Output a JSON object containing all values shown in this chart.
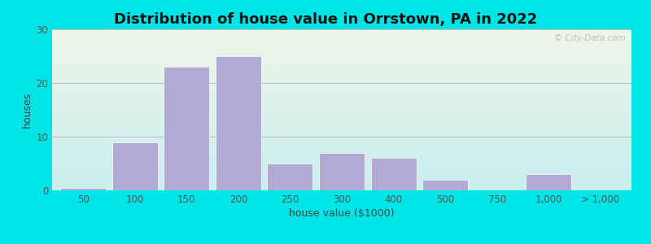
{
  "title": "Distribution of house value in Orrstown, PA in 2022",
  "xlabel": "house value ($1000)",
  "ylabel": "houses",
  "bar_color": "#b3aad4",
  "bar_edgecolor": "#ffffff",
  "background_outer": "#00e5e5",
  "background_inner_top": "#eef5e8",
  "background_inner_bottom": "#c8eeee",
  "ylim": [
    0,
    30
  ],
  "yticks": [
    0,
    10,
    20,
    30
  ],
  "tick_labels": [
    "50",
    "100",
    "150",
    "200",
    "250",
    "300",
    "400",
    "500",
    "750",
    "1,000",
    "> 1,000"
  ],
  "values": [
    0.5,
    9,
    23,
    25,
    5,
    7,
    6,
    2,
    0,
    3,
    0
  ],
  "watermark": "© City-Data.com",
  "title_fontsize": 13,
  "axis_fontsize": 8.5,
  "label_fontsize": 9
}
